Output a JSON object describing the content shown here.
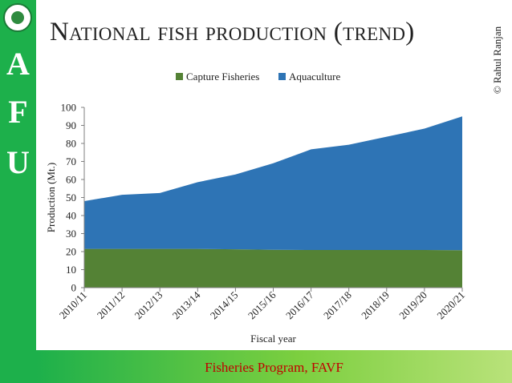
{
  "slide": {
    "title": "National fish production (trend)",
    "copyright": "© Rahul Ranjan",
    "sidebar_letters": [
      "A",
      "F",
      "U"
    ],
    "footer": "Fisheries Program, FAVF"
  },
  "colors": {
    "sidebar": "#1db04b",
    "footer_text": "#c00000",
    "capture": "#548235",
    "aquaculture": "#2e74b5"
  },
  "chart_data": {
    "type": "area",
    "stacked": true,
    "title": "",
    "xlabel": "Fiscal year",
    "ylabel": "Production (Mt.)",
    "ylim": [
      0,
      100
    ],
    "yticks": [
      0,
      10,
      20,
      30,
      40,
      50,
      60,
      70,
      80,
      90,
      100
    ],
    "legend_position": "top",
    "categories": [
      "2010/11",
      "2011/12",
      "2012/13",
      "2013/14",
      "2014/15",
      "2015/16",
      "2016/17",
      "2017/18",
      "2018/19",
      "2019/20",
      "2020/21"
    ],
    "series": [
      {
        "name": "Capture Fisheries",
        "color": "#548235",
        "values": [
          21.5,
          21.5,
          21.5,
          21.5,
          21.3,
          21.0,
          20.9,
          20.9,
          20.9,
          20.9,
          20.8
        ]
      },
      {
        "name": "Aquaculture",
        "color": "#2e74b5",
        "values": [
          26.5,
          30.0,
          31.0,
          37.0,
          41.5,
          48.0,
          55.8,
          58.4,
          62.8,
          67.3,
          74.2
        ]
      }
    ]
  }
}
